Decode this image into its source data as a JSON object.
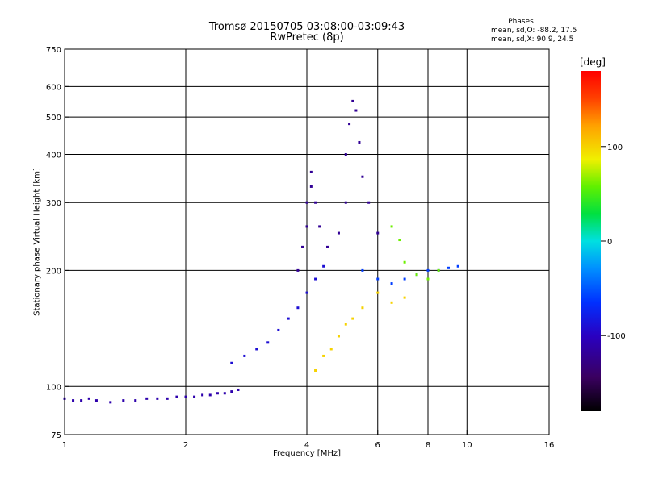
{
  "chart_data": {
    "type": "scatter",
    "title": "Tromsø 20150705 03:08:00-03:09:43",
    "subtitle": "RwPretec (8p)",
    "phase_stats": {
      "title": "Phases",
      "o_line": "mean, sd,O: -88.2, 17.5",
      "x_line": "mean, sd,X:  90.9, 24.5"
    },
    "xlabel": "Frequency [MHz]",
    "ylabel": "Stationary phase Virtual Height [km]",
    "x_scale": "log",
    "y_scale": "log",
    "xlim": [
      1,
      16
    ],
    "ylim": [
      75,
      750
    ],
    "x_ticks": [
      1,
      2,
      4,
      6,
      8,
      10,
      16
    ],
    "y_ticks": [
      75,
      100,
      200,
      300,
      400,
      500,
      600,
      750
    ],
    "x_gridlines": [
      2,
      4,
      6,
      8,
      10
    ],
    "y_gridlines": [
      100,
      200,
      300,
      400,
      500,
      600
    ],
    "grid": true,
    "colorbar": {
      "label": "[deg]",
      "ticks": [
        100,
        0,
        -100
      ],
      "range": [
        -180,
        180
      ],
      "colormap": "rainbow (black-purple-blue-cyan-green-yellow-orange-red)"
    },
    "traces": [
      {
        "name": "",
        "phase": -110,
        "points": [
          [
            1.0,
            93
          ],
          [
            1.05,
            92
          ],
          [
            1.1,
            92
          ],
          [
            1.15,
            93
          ],
          [
            1.2,
            92
          ],
          [
            1.3,
            91
          ],
          [
            1.4,
            92
          ],
          [
            1.5,
            92
          ],
          [
            1.6,
            93
          ],
          [
            1.7,
            93
          ],
          [
            1.8,
            93
          ],
          [
            1.9,
            94
          ],
          [
            2.0,
            94
          ],
          [
            2.1,
            94
          ],
          [
            2.2,
            95
          ],
          [
            2.3,
            95
          ],
          [
            2.4,
            96
          ],
          [
            2.5,
            96
          ],
          [
            2.6,
            97
          ],
          [
            2.7,
            98
          ]
        ]
      },
      {
        "name": "",
        "phase": -90,
        "points": [
          [
            2.6,
            115
          ],
          [
            2.8,
            120
          ],
          [
            3.0,
            125
          ],
          [
            3.2,
            130
          ],
          [
            3.4,
            140
          ],
          [
            3.6,
            150
          ],
          [
            3.8,
            160
          ],
          [
            4.0,
            175
          ],
          [
            4.2,
            190
          ],
          [
            4.4,
            205
          ]
        ]
      },
      {
        "name": "",
        "phase": -120,
        "points": [
          [
            3.8,
            200
          ],
          [
            3.9,
            230
          ],
          [
            4.0,
            260
          ],
          [
            4.0,
            300
          ],
          [
            4.1,
            330
          ],
          [
            4.1,
            360
          ],
          [
            4.2,
            300
          ],
          [
            4.3,
            260
          ],
          [
            4.5,
            230
          ],
          [
            4.8,
            250
          ],
          [
            5.0,
            300
          ],
          [
            5.0,
            400
          ],
          [
            5.1,
            480
          ],
          [
            5.2,
            550
          ],
          [
            5.3,
            520
          ],
          [
            5.4,
            430
          ],
          [
            5.5,
            350
          ],
          [
            5.7,
            300
          ],
          [
            6.0,
            250
          ]
        ]
      },
      {
        "name": "",
        "phase": -60,
        "points": [
          [
            5.5,
            200
          ],
          [
            6.0,
            190
          ],
          [
            6.5,
            185
          ],
          [
            7.0,
            190
          ],
          [
            7.5,
            195
          ],
          [
            8.0,
            200
          ],
          [
            8.5,
            200
          ],
          [
            9.0,
            203
          ],
          [
            9.5,
            205
          ]
        ]
      },
      {
        "name": "",
        "phase": 100,
        "points": [
          [
            4.2,
            110
          ],
          [
            4.4,
            120
          ],
          [
            4.6,
            125
          ],
          [
            4.8,
            135
          ],
          [
            5.0,
            145
          ],
          [
            5.2,
            150
          ],
          [
            5.5,
            160
          ],
          [
            6.0,
            175
          ],
          [
            6.5,
            165
          ],
          [
            7.0,
            170
          ]
        ]
      },
      {
        "name": "",
        "phase": 60,
        "points": [
          [
            6.5,
            260
          ],
          [
            6.8,
            240
          ],
          [
            7.0,
            210
          ],
          [
            7.5,
            195
          ],
          [
            8.0,
            190
          ],
          [
            8.5,
            200
          ]
        ]
      }
    ]
  }
}
